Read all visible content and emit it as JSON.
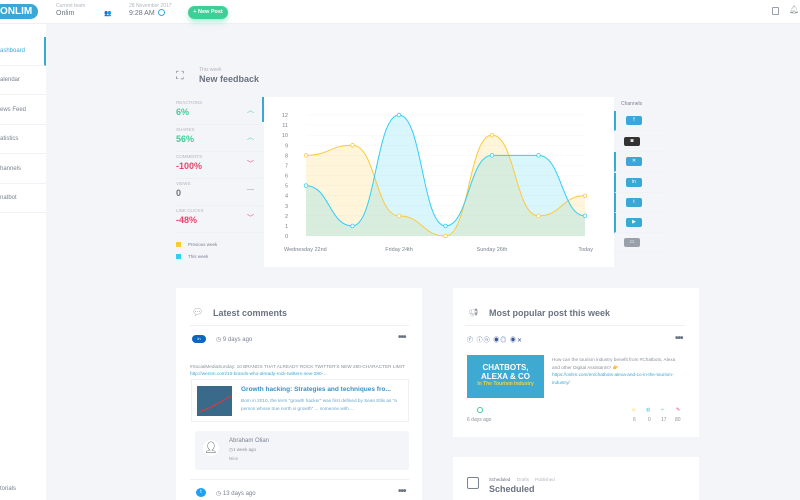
{
  "header": {
    "logo": "ONLIM",
    "team_label": "Current team",
    "team": "Onlim",
    "date": "28 November 2017",
    "time": "9:28 AM",
    "new_post": "+ New Post"
  },
  "sidebar": {
    "items": [
      {
        "label": "ashboard",
        "active": true
      },
      {
        "label": "alendar"
      },
      {
        "label": "ews Feed"
      },
      {
        "label": "atistics"
      },
      {
        "label": "hannels"
      },
      {
        "label": "natbot"
      }
    ],
    "bottom": "torials"
  },
  "feedback": {
    "subtitle": "This week",
    "title": "New feedback",
    "kpis": [
      {
        "label": "Reactions",
        "value": "6%",
        "trend": "up",
        "color": "#3ecf96"
      },
      {
        "label": "Shares",
        "value": "56%",
        "trend": "up",
        "color": "#3ecf96"
      },
      {
        "label": "Comments",
        "value": "-100%",
        "trend": "down",
        "color": "#e8436b"
      },
      {
        "label": "Views",
        "value": "0",
        "trend": "flat",
        "color": "#6b7280"
      },
      {
        "label": "Link clicks",
        "value": "-48%",
        "trend": "down",
        "color": "#e8436b"
      }
    ],
    "legend": [
      {
        "label": "Previous week",
        "color": "#fcc93a"
      },
      {
        "label": "This week",
        "color": "#33cdf5"
      }
    ],
    "channels_title": "Channels"
  },
  "chart_data": {
    "type": "area",
    "x": [
      "Wednesday 22nd",
      "",
      "Friday 24th",
      "",
      "Sunday 26th",
      "",
      "Today"
    ],
    "ylim": [
      0,
      12
    ],
    "yticks": [
      "0",
      "1",
      "2",
      "3",
      "4",
      "5",
      "6",
      "7",
      "8",
      "9",
      "10",
      "11",
      "12"
    ],
    "grid": true,
    "series": [
      {
        "name": "Previous week",
        "color": "#fcc93a",
        "values": [
          8,
          9,
          2,
          0,
          10,
          2,
          4
        ]
      },
      {
        "name": "This week",
        "color": "#33cdf5",
        "values": [
          5,
          1,
          12,
          1,
          8,
          8,
          2
        ]
      }
    ]
  },
  "comments": {
    "title": "Latest comments",
    "item": {
      "time": "9 days ago",
      "text": "#SocialMediaSunday: 10 BRANDS THAT ALREADY ROCK TWITTER'S NEW 280-CHARACTER LIMIT ",
      "link": "http://wersm.com/10-brands-who-already-rock-twitters-new-280-...",
      "preview_title": "Growth hacking: Strategies and techniques fro...",
      "preview_text": "Born in 2010, the term \"growth hacker\" was first defined by Sean Ellis as \"a person whose true north is growth\" ... someone with ...",
      "reply_author": "Abraham Olian",
      "reply_time": "1 week ago",
      "reply_text": "Nice"
    },
    "item2_time": "13 days ago"
  },
  "popular": {
    "title": "Most popular post this week",
    "image_line1": "CHATBOTS,",
    "image_line2": "ALEXA & CO",
    "image_line3": "In The Tourism Industry",
    "text": "How can the tourism industry benefit from #Chatbots, Alexa and other Digital Assistants? 👉",
    "link": "https://onlim.com/en/chatbots-alexa-and-co-in-the-tourism-industry/",
    "time": "6 days ago",
    "stats": [
      {
        "value": "6",
        "color": "#fcc93a"
      },
      {
        "value": "0",
        "color": "#33cdf5"
      },
      {
        "value": "17",
        "color": "#3ecf96"
      },
      {
        "value": "80",
        "color": "#e8436b"
      }
    ]
  },
  "scheduled": {
    "tabs": [
      "Scheduled",
      "Drafts",
      "Published"
    ],
    "title": "Scheduled"
  }
}
